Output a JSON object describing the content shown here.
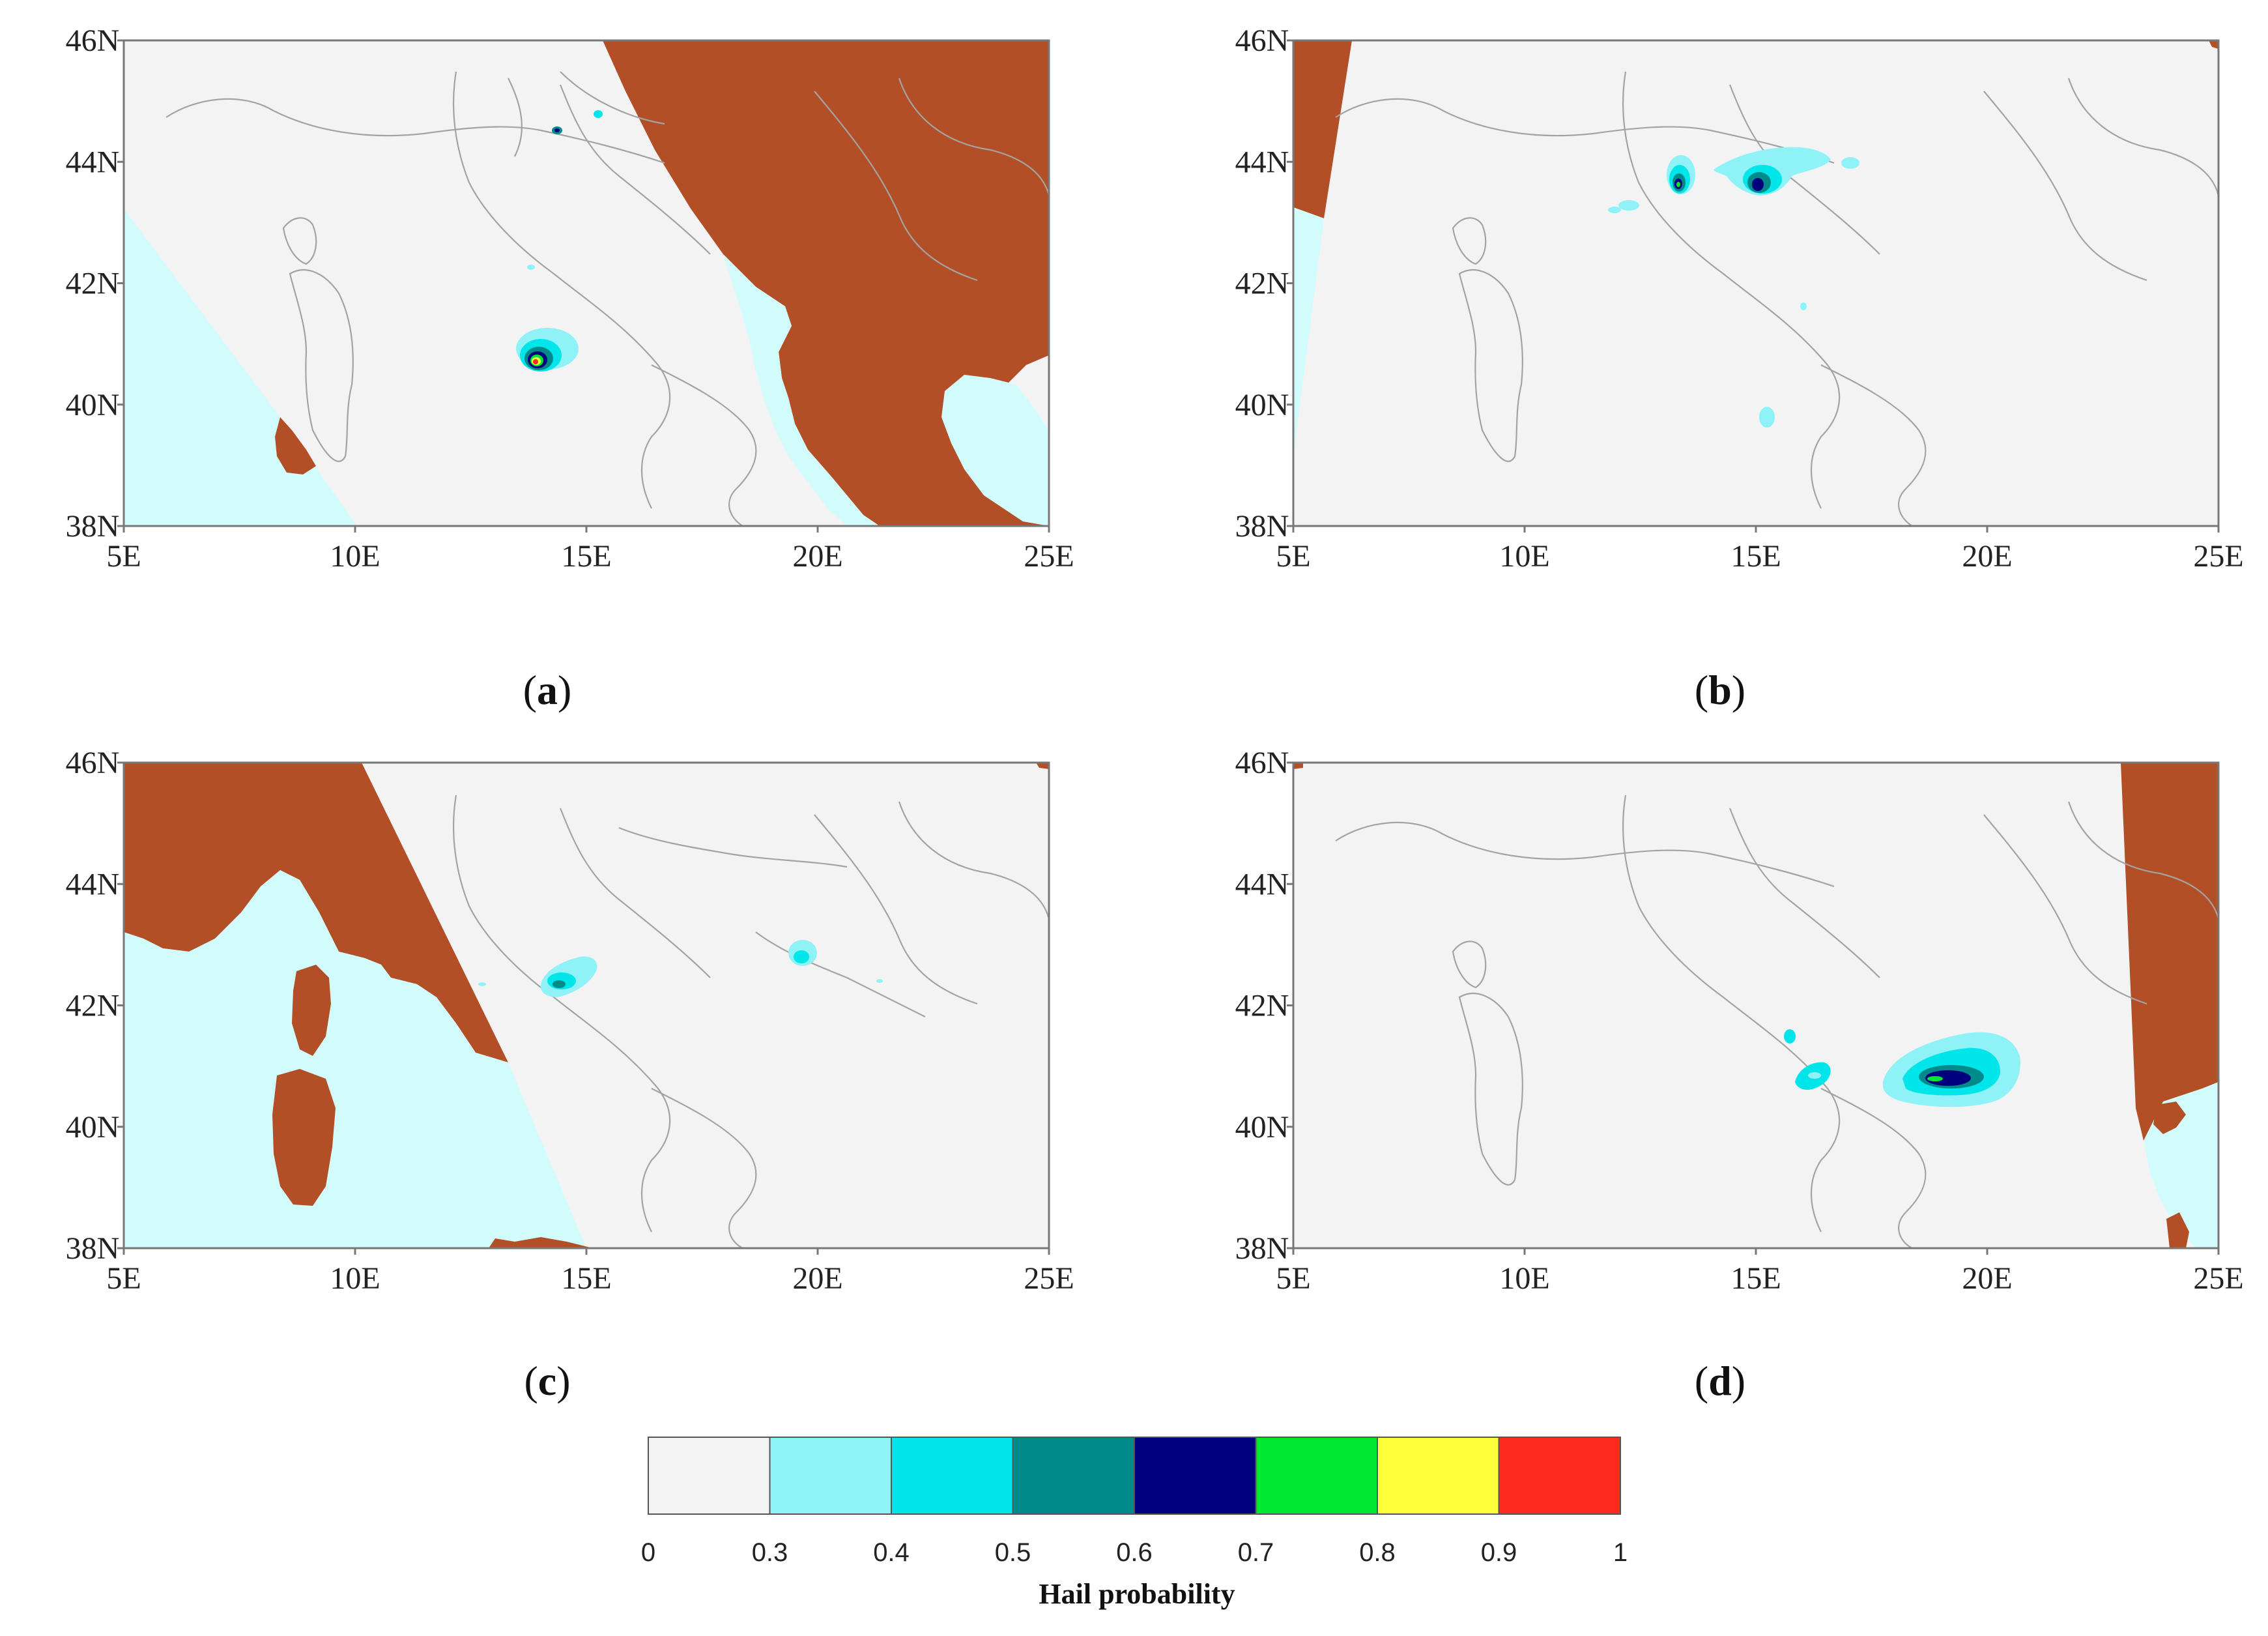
{
  "colors": {
    "land_background": "#f3f3f3",
    "missing_brown": "#b34f27",
    "sea_cyan": "#d2fbfc",
    "border_line": "#999999",
    "frame": "#777777"
  },
  "axes": {
    "lon_ticks": [
      "5E",
      "10E",
      "15E",
      "20E",
      "25E"
    ],
    "lat_ticks": [
      "46N",
      "44N",
      "42N",
      "40N",
      "38N"
    ],
    "lon_range": [
      5,
      25
    ],
    "lat_range": [
      38,
      46
    ]
  },
  "panels": [
    {
      "id": "a",
      "label": "(a)",
      "bold": "a"
    },
    {
      "id": "b",
      "label": "(b)",
      "bold": "b"
    },
    {
      "id": "c",
      "label": "(c)",
      "bold": "c"
    },
    {
      "id": "d",
      "label": "(d)",
      "bold": "d"
    }
  ],
  "legend": {
    "title": "Hail probability",
    "boundaries": [
      "0",
      "0.3",
      "0.4",
      "0.5",
      "0.6",
      "0.7",
      "0.8",
      "0.9",
      "1"
    ],
    "colors": [
      "#f3f3f3",
      "#8ef2f7",
      "#00e5ea",
      "#008a8a",
      "#00007f",
      "#00e832",
      "#ffff3a",
      "#ff2a1e"
    ]
  }
}
